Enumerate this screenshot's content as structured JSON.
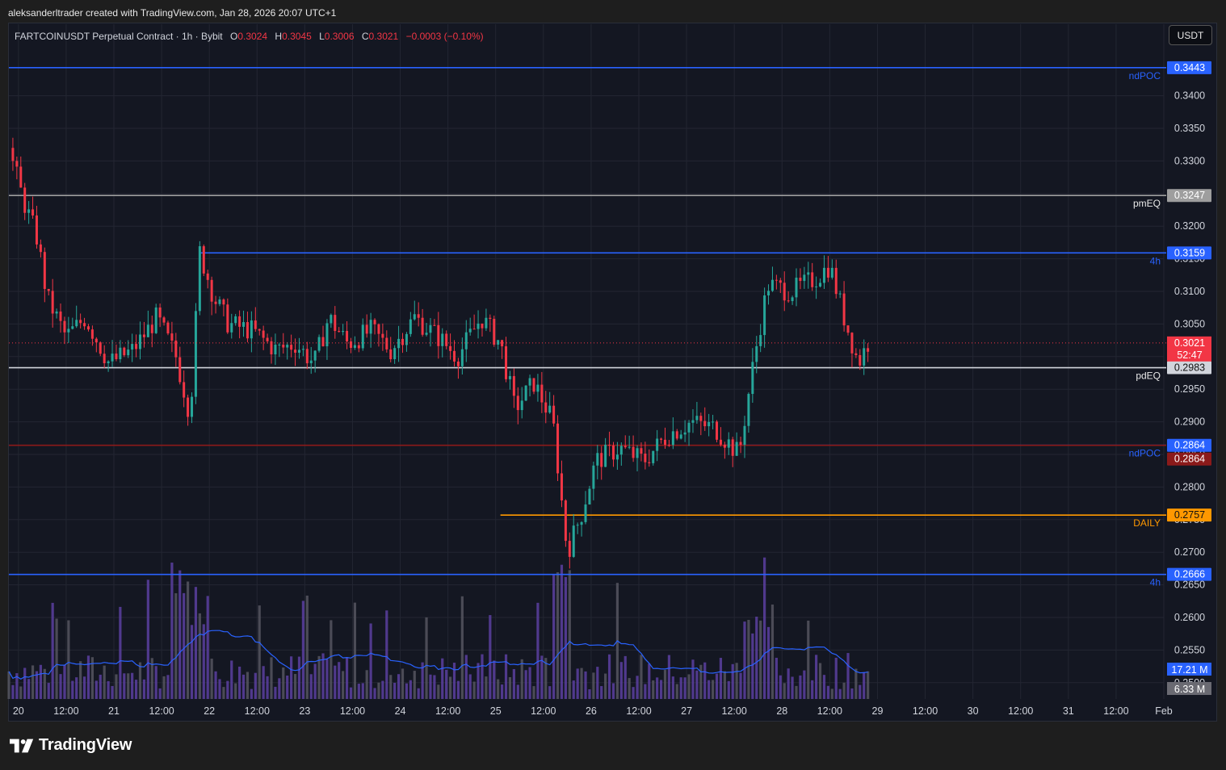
{
  "header": {
    "created_by": "aleksanderltrader created with TradingView.com, Jan 28, 2026 20:07 UTC+1"
  },
  "legend": {
    "symbol": "FARTCOINUSDT Perpetual Contract · 1h · Bybit",
    "o_label": "O",
    "o": "0.3024",
    "h_label": "H",
    "h": "0.3045",
    "l_label": "L",
    "l": "0.3006",
    "c_label": "C",
    "c": "0.3021",
    "change": "−0.0003 (−0.10%)"
  },
  "currency_button": "USDT",
  "footer": {
    "logo_text": "TradingView"
  },
  "colors": {
    "background": "#141722",
    "up": "#26a69a",
    "down": "#f23645",
    "blue_line": "#2962ff",
    "orange_line": "#ff9800",
    "white_line": "#d1d4dc",
    "red_line": "#8b1a1a",
    "volume": "#5b3fa0",
    "volume_ma": "#2962ff"
  },
  "chart_data": {
    "type": "candlestick",
    "symbol": "FARTCOINUSDT",
    "interval": "1h",
    "ylim": [
      0.2475,
      0.3475
    ],
    "y_ticks": [
      "0.3400",
      "0.3350",
      "0.3300",
      "0.3250",
      "0.3200",
      "0.3150",
      "0.3100",
      "0.3050",
      "0.3000",
      "0.2950",
      "0.2900",
      "0.2850",
      "0.2800",
      "0.2750",
      "0.2700",
      "0.2650",
      "0.2600",
      "0.2550",
      "0.2500"
    ],
    "x_ticks": [
      "20",
      "12:00",
      "21",
      "12:00",
      "22",
      "12:00",
      "23",
      "12:00",
      "24",
      "12:00",
      "25",
      "12:00",
      "26",
      "12:00",
      "27",
      "12:00",
      "28",
      "12:00",
      "29",
      "12:00",
      "30",
      "12:00",
      "31",
      "12:00",
      "Feb"
    ],
    "x_range_days": [
      19.9,
      32.0
    ],
    "last_price": "0.3021",
    "countdown": "52:47",
    "horizontal_levels": [
      {
        "price": 0.3443,
        "label": "0.3443",
        "tag": "ndPOC",
        "color": "#2962ff",
        "from_day": 19.9
      },
      {
        "price": 0.3247,
        "label": "0.3247",
        "tag": "pmEQ",
        "color": "#9e9e9e",
        "from_day": 19.9
      },
      {
        "price": 0.3159,
        "label": "0.3159",
        "tag": "4h",
        "color": "#2962ff",
        "from_day": 21.9
      },
      {
        "price": 0.2983,
        "label": "0.2983",
        "tag": "pdEQ",
        "color": "#d1d4dc",
        "from_day": 19.9
      },
      {
        "price": 0.2864,
        "label": "0.2864",
        "tag": "ndPOC",
        "color": "#2962ff",
        "from_day": 27.4
      },
      {
        "price": 0.2864,
        "label": "0.2864",
        "tag": "",
        "color": "#8b1a1a",
        "from_day": 19.9
      },
      {
        "price": 0.2757,
        "label": "0.2757",
        "tag": "DAILY",
        "color": "#ff9800",
        "from_day": 25.05
      },
      {
        "price": 0.2666,
        "label": "0.2666",
        "tag": "4h",
        "color": "#2962ff",
        "from_day": 19.9
      }
    ],
    "price_path": [
      [
        19.9,
        0.332
      ],
      [
        20.05,
        0.324
      ],
      [
        20.2,
        0.318
      ],
      [
        20.3,
        0.309
      ],
      [
        20.5,
        0.303
      ],
      [
        20.7,
        0.306
      ],
      [
        20.95,
        0.299
      ],
      [
        21.2,
        0.301
      ],
      [
        21.45,
        0.306
      ],
      [
        21.65,
        0.3
      ],
      [
        21.8,
        0.291
      ],
      [
        21.9,
        0.316
      ],
      [
        22.05,
        0.309
      ],
      [
        22.2,
        0.305
      ],
      [
        22.45,
        0.304
      ],
      [
        22.7,
        0.301
      ],
      [
        22.9,
        0.302
      ],
      [
        23.1,
        0.299
      ],
      [
        23.25,
        0.306
      ],
      [
        23.45,
        0.302
      ],
      [
        23.7,
        0.304
      ],
      [
        23.9,
        0.301
      ],
      [
        24.15,
        0.306
      ],
      [
        24.4,
        0.303
      ],
      [
        24.6,
        0.3
      ],
      [
        24.85,
        0.306
      ],
      [
        25.05,
        0.302
      ],
      [
        25.2,
        0.292
      ],
      [
        25.4,
        0.296
      ],
      [
        25.6,
        0.29
      ],
      [
        25.75,
        0.27
      ],
      [
        25.9,
        0.276
      ],
      [
        26.05,
        0.284
      ],
      [
        26.3,
        0.286
      ],
      [
        26.55,
        0.284
      ],
      [
        26.8,
        0.288
      ],
      [
        27.05,
        0.29
      ],
      [
        27.3,
        0.289
      ],
      [
        27.55,
        0.285
      ],
      [
        27.7,
        0.299
      ],
      [
        27.85,
        0.311
      ],
      [
        28.1,
        0.31
      ],
      [
        28.35,
        0.312
      ],
      [
        28.5,
        0.314
      ],
      [
        28.65,
        0.306
      ],
      [
        28.8,
        0.299
      ],
      [
        28.9,
        0.3021
      ]
    ],
    "volume_axis_labels": [
      "17.21 M",
      "6.33 M"
    ]
  }
}
